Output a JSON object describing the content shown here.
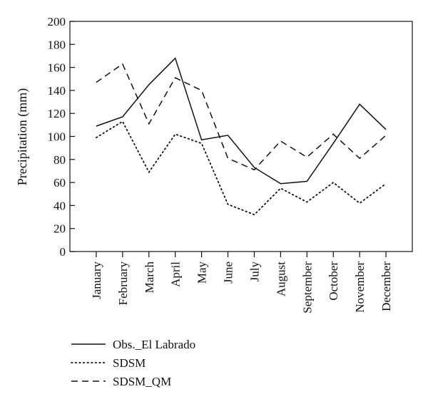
{
  "chart_data": {
    "type": "line",
    "title": "",
    "xlabel": "",
    "ylabel": "Precipitation (mm)",
    "ylim": [
      0,
      200
    ],
    "yticks": [
      0,
      20,
      40,
      60,
      80,
      100,
      120,
      140,
      160,
      180,
      200
    ],
    "categories": [
      "January",
      "February",
      "March",
      "April",
      "May",
      "June",
      "July",
      "August",
      "September",
      "October",
      "November",
      "December"
    ],
    "series": [
      {
        "name": "Obs._El Labrado",
        "style": "solid",
        "color": "#111111",
        "values": [
          109,
          117,
          145,
          168,
          97,
          101,
          73,
          59,
          61,
          94,
          128,
          106
        ]
      },
      {
        "name": "SDSM",
        "style": "dotted",
        "color": "#111111",
        "values": [
          99,
          113,
          69,
          102,
          94,
          41,
          32,
          55,
          43,
          60,
          42,
          59
        ]
      },
      {
        "name": "SDSM_QM",
        "style": "dashed",
        "color": "#111111",
        "values": [
          147,
          163,
          111,
          151,
          140,
          81,
          71,
          96,
          82,
          102,
          81,
          101
        ]
      }
    ],
    "grid": false,
    "legend": "bottom-left"
  }
}
